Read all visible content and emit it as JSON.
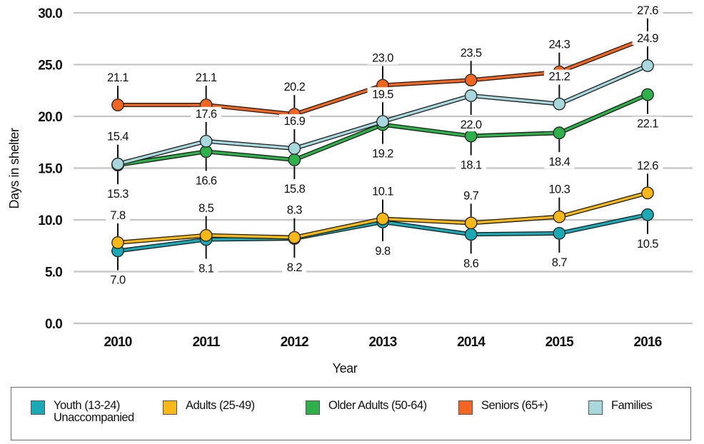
{
  "chart_data": {
    "type": "line",
    "title": "",
    "xlabel": "Year",
    "ylabel": "Days in shelter",
    "ylim": [
      0,
      30
    ],
    "yticks": [
      "0.0",
      "5.0",
      "10.0",
      "15.0",
      "20.0",
      "25.0",
      "30.0"
    ],
    "ytick_values": [
      0,
      5,
      10,
      15,
      20,
      25,
      30
    ],
    "grid": true,
    "legend_position": "bottom",
    "x": [
      "2010",
      "2011",
      "2012",
      "2013",
      "2014",
      "2015",
      "2016"
    ],
    "series": [
      {
        "name": "Youth (13-24)\nUnaccompanied",
        "key": "youth",
        "color": "#1aa9b5",
        "values": [
          7.0,
          8.1,
          8.2,
          9.8,
          8.6,
          8.7,
          10.5
        ],
        "labels": [
          "7.0",
          "8.1",
          "8.2",
          "9.8",
          "8.6",
          "8.7",
          "10.5"
        ],
        "label_side": [
          "below",
          "below",
          "below",
          "below",
          "below",
          "below",
          "below"
        ]
      },
      {
        "name": "Adults (25-49)",
        "key": "adults",
        "color": "#f8b818",
        "values": [
          7.8,
          8.5,
          8.3,
          10.1,
          9.7,
          10.3,
          12.6
        ],
        "labels": [
          "7.8",
          "8.5",
          "8.3",
          "10.1",
          "9.7",
          "10.3",
          "12.6"
        ],
        "label_side": [
          "above",
          "above",
          "above",
          "above",
          "above",
          "above",
          "above"
        ]
      },
      {
        "name": "Older Adults (50-64)",
        "key": "older",
        "color": "#2fb04a",
        "values": [
          15.3,
          16.6,
          15.8,
          19.2,
          18.1,
          18.4,
          22.1
        ],
        "labels": [
          "15.3",
          "16.6",
          "15.8",
          "19.2",
          "18.1",
          "18.4",
          "22.1"
        ],
        "label_side": [
          "below",
          "below",
          "below",
          "below",
          "below",
          "below",
          "below"
        ]
      },
      {
        "name": "Seniors (65+)",
        "key": "seniors",
        "color": "#f26522",
        "values": [
          21.1,
          21.1,
          20.2,
          23.0,
          23.5,
          24.3,
          27.6
        ],
        "labels": [
          "21.1",
          "21.1",
          "20.2",
          "23.0",
          "23.5",
          "24.3",
          "27.6"
        ],
        "label_side": [
          "above",
          "above",
          "above",
          "above",
          "above",
          "above",
          "above"
        ]
      },
      {
        "name": "Families",
        "key": "families",
        "color": "#a8d8dd",
        "values": [
          15.4,
          17.6,
          16.9,
          19.5,
          22.0,
          21.2,
          24.9
        ],
        "labels": [
          "15.4",
          "17.6",
          "16.9",
          "19.5",
          "22.0",
          "21.2",
          "24.9"
        ],
        "label_side": [
          "above",
          "above",
          "above",
          "above",
          "below",
          "above",
          "above"
        ]
      }
    ]
  }
}
